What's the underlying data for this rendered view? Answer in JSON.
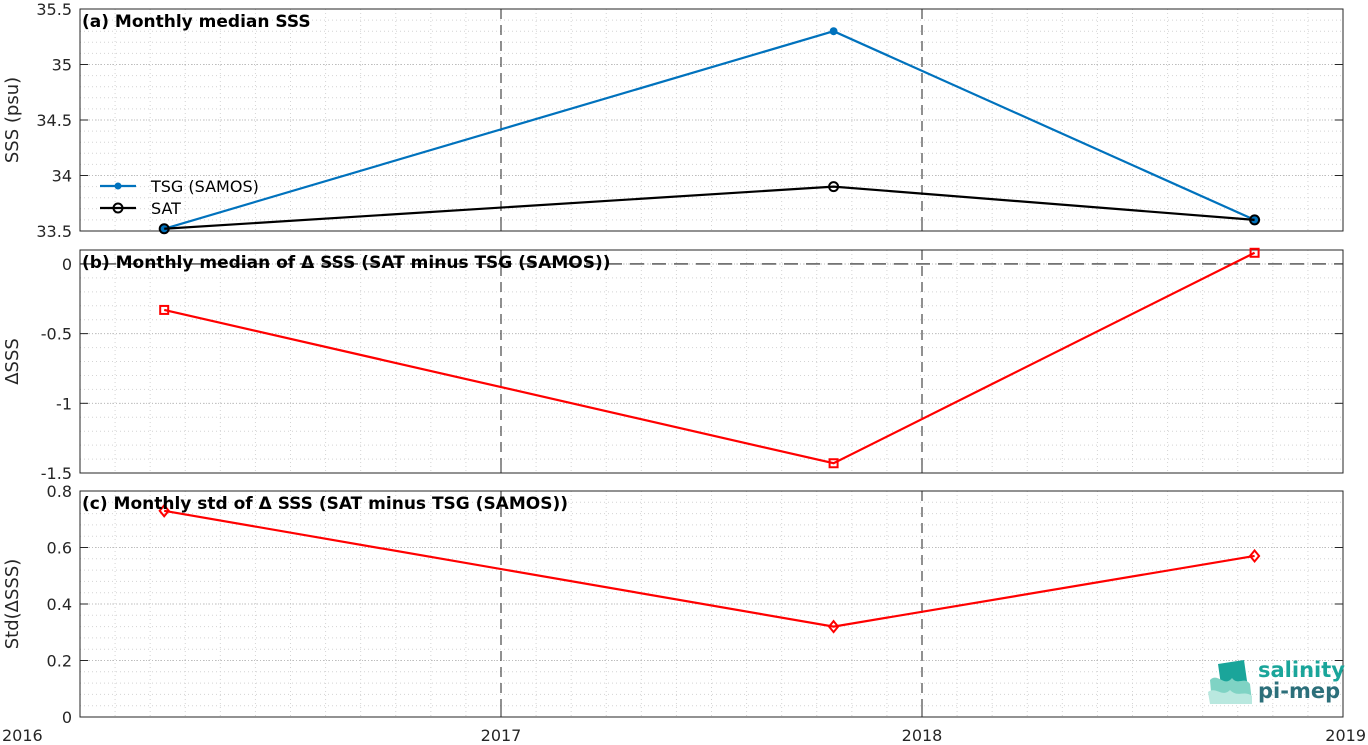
{
  "chart_data": [
    {
      "type": "line",
      "title": "(a) Monthly median SSS",
      "ylabel": "SSS (psu)",
      "xlim": [
        2016,
        2019
      ],
      "ylim": [
        33.5,
        35.5
      ],
      "yticks": [
        33.5,
        34,
        34.5,
        35,
        35.5
      ],
      "ytick_labels": [
        "33.5",
        "34",
        "34.5",
        "35",
        "35.5"
      ],
      "grid": true,
      "legend_position": "left",
      "series": [
        {
          "name": "TSG (SAMOS)",
          "color": "#0072bd",
          "marker": "filled-dot",
          "x": [
            2016.2,
            2017.79,
            2018.79
          ],
          "y": [
            33.52,
            35.3,
            33.6
          ]
        },
        {
          "name": "SAT",
          "color": "#000000",
          "marker": "open-circle",
          "x": [
            2016.2,
            2017.79,
            2018.79
          ],
          "y": [
            33.52,
            33.9,
            33.6
          ]
        }
      ]
    },
    {
      "type": "line",
      "title": "(b) Monthly median of Δ SSS (SAT minus TSG (SAMOS))",
      "ylabel": "ΔSSS",
      "xlim": [
        2016,
        2019
      ],
      "ylim": [
        -1.5,
        0.1
      ],
      "yticks": [
        -1.5,
        -1,
        -0.5,
        0
      ],
      "ytick_labels": [
        "-1.5",
        "-1",
        "-0.5",
        "0"
      ],
      "zero_line": true,
      "grid": true,
      "series": [
        {
          "color": "#ff0000",
          "marker": "square",
          "x": [
            2016.2,
            2017.79,
            2018.79
          ],
          "y": [
            -0.33,
            -1.43,
            0.08
          ]
        }
      ]
    },
    {
      "type": "line",
      "title": "(c) Monthly std of Δ SSS (SAT minus TSG (SAMOS))",
      "ylabel": "Std(ΔSSS)",
      "xlim": [
        2016,
        2019
      ],
      "ylim": [
        0,
        0.8
      ],
      "yticks": [
        0,
        0.2,
        0.4,
        0.6,
        0.8
      ],
      "ytick_labels": [
        "0",
        "0.2",
        "0.4",
        "0.6",
        "0.8"
      ],
      "xticks": [
        2016,
        2017,
        2018,
        2019
      ],
      "xtick_labels": [
        "2016",
        "2017",
        "2018",
        "2019"
      ],
      "grid": true,
      "series": [
        {
          "color": "#ff0000",
          "marker": "diamond",
          "x": [
            2016.2,
            2017.79,
            2018.79
          ],
          "y": [
            0.73,
            0.32,
            0.57
          ]
        }
      ]
    }
  ],
  "logo": {
    "line1": "salinity",
    "line2": "pi-mep"
  }
}
